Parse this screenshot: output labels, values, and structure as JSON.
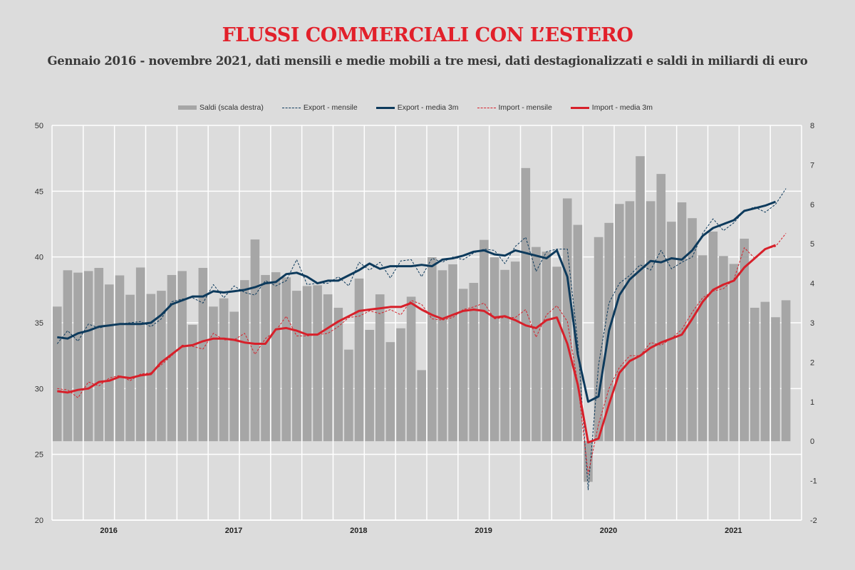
{
  "title": "FLUSSI COMMERCIALI CON L’ESTERO",
  "subtitle": "Gennaio 2016 - novembre 2021, dati mensili e medie mobili a tre mesi, dati destagionalizzati e saldi in miliardi di euro",
  "legend": {
    "saldi": "Saldi (scala destra)",
    "export_monthly": "Export - mensile",
    "export_3m": "Export - media 3m",
    "import_monthly": "Import - mensile",
    "import_3m": "Import - media 3m"
  },
  "colors": {
    "bars": "#a6a6a6",
    "export": "#0d3a5c",
    "import": "#d7202a",
    "title": "#e2202a"
  },
  "chart_data": {
    "type": "bar+line",
    "x_start": "2016-01",
    "x_end": "2021-11",
    "x_tick_labels": [
      "2016",
      "2017",
      "2018",
      "2019",
      "2020",
      "2021"
    ],
    "y_left": {
      "range": [
        20,
        50
      ],
      "ticks": [
        20,
        25,
        30,
        35,
        40,
        45,
        50
      ]
    },
    "y_right": {
      "range": [
        -2,
        8
      ],
      "ticks": [
        -2,
        -1,
        0,
        1,
        2,
        3,
        4,
        5,
        6,
        7,
        8
      ]
    },
    "grid": true,
    "legend_position": "top",
    "series": [
      {
        "name": "Saldi (scala destra)",
        "type": "bar",
        "axis": "right",
        "values": [
          3.41,
          4.33,
          4.27,
          4.31,
          4.39,
          3.97,
          4.2,
          3.71,
          4.4,
          3.73,
          3.81,
          4.21,
          4.31,
          2.95,
          4.39,
          3.41,
          3.62,
          3.28,
          4.08,
          5.11,
          4.21,
          4.28,
          4.15,
          3.81,
          3.93,
          3.95,
          3.72,
          3.38,
          2.32,
          4.12,
          2.82,
          3.72,
          2.51,
          2.86,
          3.66,
          1.8,
          4.66,
          4.33,
          4.48,
          3.86,
          4.01,
          5.1,
          4.66,
          4.34,
          4.55,
          6.92,
          4.92,
          4.8,
          4.42,
          6.15,
          5.48,
          -1.03,
          5.17,
          5.53,
          6.01,
          6.08,
          7.22,
          6.08,
          6.77,
          5.56,
          6.05,
          5.65,
          4.71,
          5.31,
          4.69,
          4.49,
          5.13,
          3.38,
          3.53,
          3.14,
          3.57
        ]
      },
      {
        "name": "Export - mensile",
        "type": "line",
        "style": "dashed",
        "axis": "left",
        "values": [
          33.4,
          34.4,
          33.6,
          34.9,
          34.6,
          34.8,
          34.9,
          35.0,
          35.1,
          34.7,
          35.3,
          36.6,
          36.8,
          36.9,
          36.5,
          37.9,
          36.9,
          37.8,
          37.3,
          37.1,
          38.2,
          37.8,
          38.2,
          39.8,
          37.9,
          38.0,
          38.0,
          38.5,
          37.8,
          39.6,
          39.0,
          39.6,
          38.4,
          39.7,
          39.8,
          38.5,
          39.9,
          39.6,
          40.0,
          39.8,
          40.3,
          40.6,
          40.5,
          39.5,
          40.8,
          41.5,
          38.9,
          40.4,
          40.6,
          40.6,
          33.5,
          22.3,
          31.8,
          36.5,
          38.0,
          38.6,
          39.4,
          39.0,
          40.5,
          39.1,
          39.6,
          40.0,
          41.8,
          42.9,
          42.0,
          42.6,
          43.5,
          43.8,
          43.4,
          44.0,
          45.2
        ]
      },
      {
        "name": "Export - media 3m",
        "type": "line",
        "axis": "left",
        "values": [
          33.9,
          33.8,
          34.2,
          34.4,
          34.7,
          34.8,
          34.9,
          34.9,
          34.9,
          35.0,
          35.6,
          36.4,
          36.7,
          37.0,
          37.0,
          37.4,
          37.3,
          37.4,
          37.5,
          37.7,
          38.0,
          38.1,
          38.7,
          38.8,
          38.5,
          38.0,
          38.2,
          38.2,
          38.6,
          39.0,
          39.5,
          39.1,
          39.3,
          39.3,
          39.3,
          39.4,
          39.3,
          39.8,
          39.9,
          40.1,
          40.4,
          40.5,
          40.2,
          40.1,
          40.5,
          40.3,
          40.1,
          39.9,
          40.5,
          38.5,
          32.6,
          29.0,
          29.4,
          34.4,
          37.1,
          38.3,
          39.0,
          39.7,
          39.6,
          39.9,
          39.8,
          40.5,
          41.6,
          42.2,
          42.5,
          42.8,
          43.5,
          43.7,
          43.9,
          44.2
        ]
      },
      {
        "name": "Import - mensile",
        "type": "line",
        "style": "dashed",
        "axis": "left",
        "values": [
          30.0,
          29.9,
          29.3,
          30.5,
          30.2,
          30.8,
          31.0,
          30.6,
          31.1,
          31.2,
          31.8,
          32.5,
          33.3,
          33.2,
          33.0,
          34.2,
          33.7,
          33.7,
          34.2,
          32.6,
          33.8,
          34.4,
          35.5,
          34.0,
          34.0,
          34.1,
          34.2,
          34.7,
          35.4,
          35.5,
          35.9,
          35.7,
          36.0,
          35.6,
          36.7,
          36.4,
          35.3,
          35.2,
          35.4,
          36.0,
          36.2,
          36.5,
          35.3,
          35.4,
          35.4,
          36.0,
          33.9,
          35.6,
          36.3,
          35.1,
          30.4,
          23.5,
          27.3,
          30.0,
          31.6,
          32.5,
          32.5,
          33.5,
          33.3,
          33.8,
          34.5,
          35.8,
          36.9,
          37.4,
          37.6,
          38.3,
          40.7,
          39.9,
          40.6,
          40.8,
          41.8
        ]
      },
      {
        "name": "Import - media 3m",
        "type": "line",
        "axis": "left",
        "values": [
          29.8,
          29.7,
          29.9,
          30.0,
          30.5,
          30.6,
          30.9,
          30.8,
          31.0,
          31.1,
          32.0,
          32.6,
          33.2,
          33.3,
          33.6,
          33.8,
          33.8,
          33.7,
          33.5,
          33.4,
          33.4,
          34.5,
          34.6,
          34.4,
          34.1,
          34.1,
          34.6,
          35.1,
          35.5,
          35.9,
          36.0,
          36.1,
          36.2,
          36.2,
          36.5,
          36.0,
          35.6,
          35.3,
          35.6,
          35.9,
          36.0,
          35.9,
          35.4,
          35.5,
          35.2,
          34.8,
          34.6,
          35.2,
          35.4,
          33.4,
          30.3,
          25.9,
          26.2,
          28.8,
          31.2,
          32.1,
          32.5,
          33.1,
          33.5,
          33.8,
          34.1,
          35.3,
          36.6,
          37.5,
          37.9,
          38.2,
          39.2,
          39.9,
          40.6,
          40.9
        ]
      }
    ]
  }
}
